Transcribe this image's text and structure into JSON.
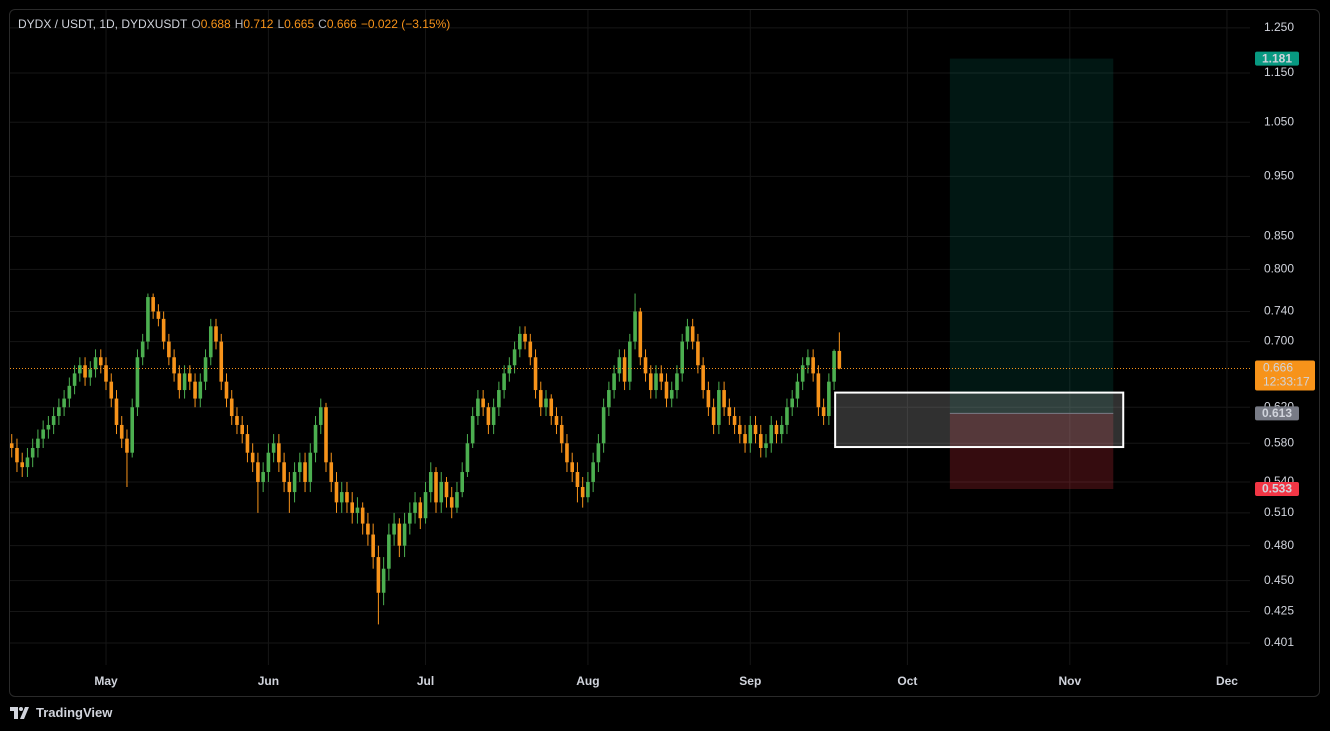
{
  "chart_data": {
    "type": "candlestick",
    "title": "DYDX / USDT, 1D, DYDXUSDT",
    "ohlc_legend": {
      "open_label": "O",
      "open": 0.688,
      "high_label": "H",
      "high": 0.712,
      "low_label": "L",
      "low": 0.665,
      "close_label": "C",
      "close": 0.666,
      "change": "−0.022 (−3.15%)"
    },
    "open": [
      0.58,
      0.575,
      0.56,
      0.555,
      0.565,
      0.575,
      0.585,
      0.595,
      0.6,
      0.61,
      0.62,
      0.63,
      0.645,
      0.66,
      0.67,
      0.655,
      0.665,
      0.68,
      0.67,
      0.65,
      0.63,
      0.6,
      0.585,
      0.57,
      0.62,
      0.68,
      0.7,
      0.76,
      0.74,
      0.73,
      0.7,
      0.68,
      0.66,
      0.64,
      0.66,
      0.65,
      0.63,
      0.65,
      0.68,
      0.72,
      0.7,
      0.65,
      0.63,
      0.61,
      0.6,
      0.59,
      0.57,
      0.56,
      0.54,
      0.55,
      0.57,
      0.58,
      0.56,
      0.54,
      0.53,
      0.55,
      0.56,
      0.54,
      0.57,
      0.6,
      0.62,
      0.56,
      0.54,
      0.52,
      0.53,
      0.52,
      0.51,
      0.515,
      0.5,
      0.49,
      0.47,
      0.44,
      0.46,
      0.49,
      0.5,
      0.48,
      0.5,
      0.51,
      0.52,
      0.505,
      0.53,
      0.55,
      0.52,
      0.54,
      0.525,
      0.515,
      0.53,
      0.55,
      0.58,
      0.61,
      0.63,
      0.62,
      0.6,
      0.62,
      0.64,
      0.66,
      0.67,
      0.69,
      0.71,
      0.7,
      0.68,
      0.64,
      0.62,
      0.63,
      0.61,
      0.6,
      0.58,
      0.56,
      0.55,
      0.535,
      0.525,
      0.54,
      0.56,
      0.58,
      0.62,
      0.64,
      0.66,
      0.68,
      0.65,
      0.7,
      0.74,
      0.68,
      0.66,
      0.64,
      0.66,
      0.65,
      0.63,
      0.64,
      0.66,
      0.7,
      0.72,
      0.7,
      0.67,
      0.64,
      0.62,
      0.6,
      0.64,
      0.62,
      0.61,
      0.6,
      0.59,
      0.58,
      0.6,
      0.59,
      0.575,
      0.58,
      0.6,
      0.59,
      0.6,
      0.62,
      0.63,
      0.65,
      0.67,
      0.68,
      0.66,
      0.62,
      0.61,
      0.65,
      0.688
    ],
    "high": [
      0.59,
      0.585,
      0.57,
      0.575,
      0.585,
      0.595,
      0.605,
      0.61,
      0.62,
      0.63,
      0.64,
      0.655,
      0.67,
      0.68,
      0.68,
      0.675,
      0.69,
      0.69,
      0.68,
      0.66,
      0.64,
      0.61,
      0.595,
      0.63,
      0.69,
      0.71,
      0.765,
      0.765,
      0.75,
      0.74,
      0.71,
      0.69,
      0.67,
      0.67,
      0.67,
      0.66,
      0.66,
      0.69,
      0.73,
      0.73,
      0.71,
      0.66,
      0.64,
      0.62,
      0.61,
      0.6,
      0.58,
      0.57,
      0.56,
      0.58,
      0.59,
      0.59,
      0.57,
      0.55,
      0.56,
      0.57,
      0.57,
      0.58,
      0.61,
      0.63,
      0.625,
      0.57,
      0.55,
      0.54,
      0.54,
      0.53,
      0.525,
      0.52,
      0.51,
      0.5,
      0.48,
      0.47,
      0.5,
      0.51,
      0.505,
      0.51,
      0.52,
      0.53,
      0.525,
      0.54,
      0.56,
      0.555,
      0.55,
      0.545,
      0.535,
      0.54,
      0.56,
      0.59,
      0.62,
      0.64,
      0.64,
      0.625,
      0.63,
      0.65,
      0.67,
      0.68,
      0.7,
      0.72,
      0.72,
      0.71,
      0.69,
      0.65,
      0.64,
      0.635,
      0.62,
      0.61,
      0.59,
      0.57,
      0.56,
      0.545,
      0.55,
      0.57,
      0.59,
      0.63,
      0.65,
      0.67,
      0.69,
      0.69,
      0.71,
      0.765,
      0.745,
      0.69,
      0.67,
      0.67,
      0.67,
      0.66,
      0.65,
      0.67,
      0.71,
      0.73,
      0.73,
      0.71,
      0.68,
      0.65,
      0.63,
      0.65,
      0.65,
      0.63,
      0.62,
      0.61,
      0.6,
      0.61,
      0.61,
      0.6,
      0.59,
      0.61,
      0.605,
      0.61,
      0.63,
      0.64,
      0.66,
      0.68,
      0.69,
      0.69,
      0.67,
      0.63,
      0.66,
      0.69,
      0.712
    ],
    "low": [
      0.565,
      0.55,
      0.545,
      0.545,
      0.555,
      0.565,
      0.575,
      0.585,
      0.59,
      0.6,
      0.61,
      0.62,
      0.635,
      0.65,
      0.645,
      0.645,
      0.655,
      0.66,
      0.64,
      0.62,
      0.59,
      0.575,
      0.535,
      0.565,
      0.61,
      0.67,
      0.69,
      0.73,
      0.72,
      0.69,
      0.67,
      0.65,
      0.63,
      0.63,
      0.64,
      0.62,
      0.62,
      0.64,
      0.67,
      0.69,
      0.64,
      0.62,
      0.6,
      0.59,
      0.58,
      0.56,
      0.55,
      0.51,
      0.53,
      0.54,
      0.56,
      0.55,
      0.53,
      0.51,
      0.52,
      0.54,
      0.53,
      0.53,
      0.56,
      0.59,
      0.55,
      0.53,
      0.51,
      0.51,
      0.51,
      0.5,
      0.5,
      0.49,
      0.48,
      0.46,
      0.415,
      0.43,
      0.45,
      0.48,
      0.47,
      0.47,
      0.49,
      0.5,
      0.495,
      0.5,
      0.52,
      0.51,
      0.51,
      0.515,
      0.505,
      0.51,
      0.525,
      0.545,
      0.575,
      0.6,
      0.61,
      0.59,
      0.59,
      0.61,
      0.63,
      0.65,
      0.66,
      0.68,
      0.69,
      0.67,
      0.63,
      0.61,
      0.61,
      0.6,
      0.59,
      0.57,
      0.55,
      0.54,
      0.52,
      0.515,
      0.52,
      0.53,
      0.55,
      0.57,
      0.61,
      0.63,
      0.65,
      0.64,
      0.64,
      0.69,
      0.67,
      0.65,
      0.63,
      0.63,
      0.64,
      0.62,
      0.62,
      0.63,
      0.65,
      0.69,
      0.69,
      0.66,
      0.63,
      0.61,
      0.59,
      0.59,
      0.61,
      0.6,
      0.59,
      0.58,
      0.57,
      0.57,
      0.58,
      0.565,
      0.565,
      0.57,
      0.58,
      0.58,
      0.59,
      0.61,
      0.62,
      0.64,
      0.66,
      0.65,
      0.61,
      0.6,
      0.6,
      0.64,
      0.665
    ],
    "close": [
      0.575,
      0.56,
      0.555,
      0.565,
      0.575,
      0.585,
      0.595,
      0.6,
      0.61,
      0.62,
      0.63,
      0.645,
      0.66,
      0.67,
      0.655,
      0.665,
      0.68,
      0.67,
      0.65,
      0.63,
      0.6,
      0.585,
      0.57,
      0.62,
      0.68,
      0.7,
      0.76,
      0.74,
      0.73,
      0.7,
      0.68,
      0.66,
      0.64,
      0.66,
      0.65,
      0.63,
      0.65,
      0.68,
      0.72,
      0.7,
      0.65,
      0.63,
      0.61,
      0.6,
      0.59,
      0.57,
      0.56,
      0.54,
      0.55,
      0.57,
      0.58,
      0.56,
      0.54,
      0.53,
      0.55,
      0.56,
      0.54,
      0.57,
      0.6,
      0.62,
      0.56,
      0.54,
      0.52,
      0.53,
      0.52,
      0.51,
      0.515,
      0.5,
      0.49,
      0.47,
      0.44,
      0.46,
      0.49,
      0.5,
      0.48,
      0.5,
      0.51,
      0.52,
      0.505,
      0.53,
      0.55,
      0.52,
      0.54,
      0.525,
      0.515,
      0.53,
      0.55,
      0.58,
      0.61,
      0.63,
      0.62,
      0.6,
      0.62,
      0.64,
      0.66,
      0.67,
      0.69,
      0.71,
      0.7,
      0.68,
      0.64,
      0.62,
      0.63,
      0.61,
      0.6,
      0.58,
      0.56,
      0.55,
      0.535,
      0.525,
      0.54,
      0.56,
      0.58,
      0.62,
      0.64,
      0.66,
      0.68,
      0.65,
      0.7,
      0.74,
      0.68,
      0.66,
      0.64,
      0.66,
      0.65,
      0.63,
      0.64,
      0.66,
      0.7,
      0.72,
      0.7,
      0.67,
      0.64,
      0.62,
      0.6,
      0.64,
      0.62,
      0.61,
      0.6,
      0.59,
      0.58,
      0.6,
      0.59,
      0.575,
      0.58,
      0.6,
      0.59,
      0.6,
      0.62,
      0.63,
      0.65,
      0.67,
      0.68,
      0.66,
      0.62,
      0.61,
      0.65,
      0.688,
      0.666
    ],
    "up_color": "#4caf50",
    "down_color": "#f7931a",
    "log_scale": true,
    "grid": true,
    "ylim": [
      0.385,
      1.292
    ],
    "yticks": [
      0.401,
      0.425,
      {
        "value": 0.45,
        "label": "0.450"
      },
      {
        "value": 0.48,
        "label": "0.480"
      },
      {
        "value": 0.51,
        "label": "0.510"
      },
      {
        "value": 0.54,
        "label": "0.540"
      },
      {
        "value": 0.58,
        "label": "0.580"
      },
      {
        "value": 0.62,
        "label": "0.620"
      },
      {
        "value": 0.7,
        "label": "0.700"
      },
      {
        "value": 0.74,
        "label": "0.740"
      },
      {
        "value": 0.8,
        "label": "0.800"
      },
      {
        "value": 0.85,
        "label": "0.850"
      },
      {
        "value": 0.95,
        "label": "0.950"
      },
      {
        "value": 1.05,
        "label": "1.050"
      },
      {
        "value": 1.15,
        "label": "1.150"
      },
      {
        "value": 1.25,
        "label": "1.250"
      }
    ],
    "xlim": [
      -0.33,
      236.4
    ],
    "xticks": [
      {
        "value": 18,
        "label": "May"
      },
      {
        "value": 49,
        "label": "Jun"
      },
      {
        "value": 79,
        "label": "Jul"
      },
      {
        "value": 110,
        "label": "Aug"
      },
      {
        "value": 141,
        "label": "Sep"
      },
      {
        "value": 171,
        "label": "Oct"
      },
      {
        "value": 202,
        "label": "Nov"
      },
      {
        "value": 232,
        "label": "Dec"
      }
    ],
    "last_price": {
      "value": 0.666,
      "countdown": "12:33:17",
      "color": "#f7931a"
    },
    "position": {
      "start": 179.1,
      "end": 210.3,
      "target": 1.181,
      "entry": 0.613,
      "stop": 0.533,
      "target_color": "#089981",
      "entry_color": "#787b86",
      "stop_color": "#f23645"
    },
    "rectangle": {
      "x": [
        157.2,
        212.2
      ],
      "y": [
        0.576,
        0.637
      ]
    }
  },
  "footer": {
    "brand": "TradingView"
  }
}
